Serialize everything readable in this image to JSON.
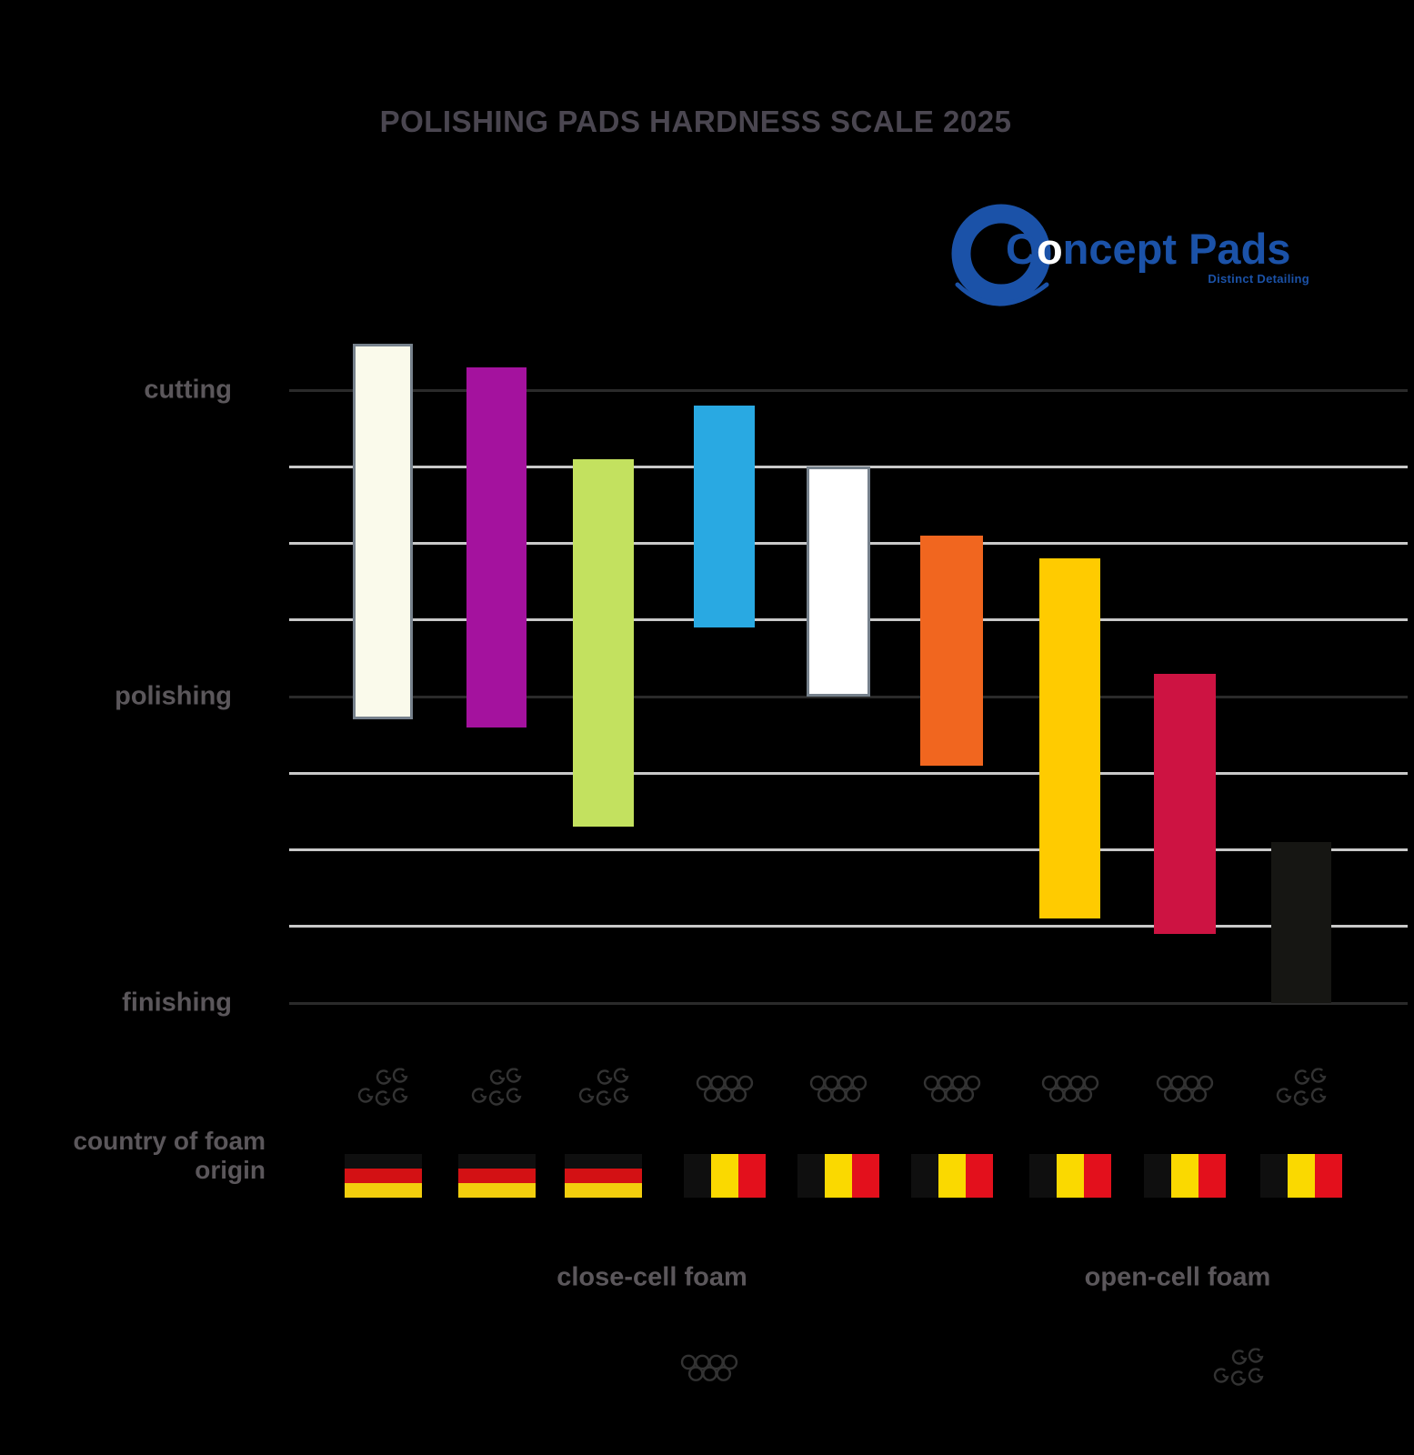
{
  "logo": {
    "brand_c": "C",
    "brand_o": "o",
    "brand_rest": "ncept Pads",
    "tagline": "Distinct Detailing"
  },
  "colors": {
    "background": "#000000",
    "title_text": "#4A4650",
    "label_text": "#5B575B",
    "gridline_light": "#C9C9C9",
    "gridline_dark": "#2A2A2A",
    "icon_stroke": "#333333",
    "logo_blue": "#1B52A8",
    "logo_o_white": "#FFFFFF",
    "flag_germany": [
      "#0F0F0F",
      "#D31114",
      "#F3CE0D"
    ],
    "flag_belgium": [
      "#0F0F0F",
      "#FAD900",
      "#E3101C"
    ]
  },
  "chart_data": {
    "type": "bar",
    "subtype": "floating-range-columns",
    "title": "POLISHING PADS HARDNESS SCALE 2025",
    "y_axis": {
      "labels": [
        {
          "text": "cutting",
          "gridline_index": 0
        },
        {
          "text": "polishing",
          "gridline_index": 4
        },
        {
          "text": "finishing",
          "gridline_index": 8
        }
      ],
      "gridline_count": 9,
      "major_gridline_indices": [
        0,
        4,
        8
      ],
      "value_top": 8,
      "value_bottom": 0,
      "note": "hardness value scale: 8 = cutting line (top), 4 = polishing line, 0 = finishing line (bottom); one unit per unlabeled gridline"
    },
    "x_axis": {
      "label": "country of foam origin",
      "tick_type": "foam-structure icon + country flag per pad"
    },
    "series": [
      {
        "pad": "ivory",
        "color": "#FAFAEB",
        "border": "#76818C",
        "range": [
          3.7,
          8.6
        ],
        "foam": "open-cell",
        "country": "germany"
      },
      {
        "pad": "purple",
        "color": "#A4129E",
        "range": [
          3.6,
          8.3
        ],
        "foam": "open-cell",
        "country": "germany"
      },
      {
        "pad": "green",
        "color": "#C3E15F",
        "range": [
          2.3,
          7.1
        ],
        "foam": "open-cell",
        "country": "germany"
      },
      {
        "pad": "blue",
        "color": "#29A9E2",
        "range": [
          4.9,
          7.8
        ],
        "foam": "close-cell",
        "country": "belgium"
      },
      {
        "pad": "white",
        "color": "#FFFFFF",
        "border": "#76818C",
        "range": [
          4.0,
          7.0
        ],
        "foam": "close-cell",
        "country": "belgium"
      },
      {
        "pad": "orange",
        "color": "#F1661F",
        "range": [
          3.1,
          6.1
        ],
        "foam": "close-cell",
        "country": "belgium"
      },
      {
        "pad": "yellow",
        "color": "#FFCB00",
        "range": [
          1.1,
          5.8
        ],
        "foam": "close-cell",
        "country": "belgium"
      },
      {
        "pad": "red",
        "color": "#CD1342",
        "range": [
          0.9,
          4.3
        ],
        "foam": "close-cell",
        "country": "belgium"
      },
      {
        "pad": "black",
        "color": "#161613",
        "range": [
          0.0,
          2.1
        ],
        "foam": "open-cell",
        "country": "belgium"
      }
    ],
    "legend": [
      {
        "label": "close-cell foam",
        "icon": "close-cell-icon"
      },
      {
        "label": "open-cell foam",
        "icon": "open-cell-icon"
      }
    ]
  }
}
